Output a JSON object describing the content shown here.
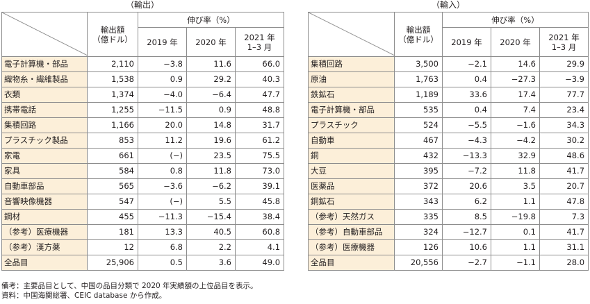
{
  "left": {
    "caption": "（輸出）",
    "header": {
      "col1": "輸出額\n（億ドル）",
      "group": "伸び率（%）",
      "y2019": "2019 年",
      "y2020": "2020 年",
      "y2021": "2021 年\n1–3 月"
    },
    "rows": [
      {
        "name": "電子計算機・部品",
        "amount": "2,110",
        "y2019": "−3.8",
        "y2020": "11.6",
        "y2021": "66.0"
      },
      {
        "name": "織物糸・繊維製品",
        "amount": "1,538",
        "y2019": "0.9",
        "y2020": "29.2",
        "y2021": "40.3"
      },
      {
        "name": "衣類",
        "amount": "1,374",
        "y2019": "−4.0",
        "y2020": "−6.4",
        "y2021": "47.7"
      },
      {
        "name": "携帯電話",
        "amount": "1,255",
        "y2019": "−11.5",
        "y2020": "0.9",
        "y2021": "48.8"
      },
      {
        "name": "集積回路",
        "amount": "1,166",
        "y2019": "20.0",
        "y2020": "14.8",
        "y2021": "31.7"
      },
      {
        "name": "プラスチック製品",
        "amount": "853",
        "y2019": "11.2",
        "y2020": "19.6",
        "y2021": "61.2"
      },
      {
        "name": "家電",
        "amount": "661",
        "y2019": "(−)",
        "y2020": "23.5",
        "y2021": "75.5"
      },
      {
        "name": "家具",
        "amount": "584",
        "y2019": "0.8",
        "y2020": "11.8",
        "y2021": "73.0"
      },
      {
        "name": "自動車部品",
        "amount": "565",
        "y2019": "−3.6",
        "y2020": "−6.2",
        "y2021": "39.1"
      },
      {
        "name": "音響映像機器",
        "amount": "547",
        "y2019": "(−)",
        "y2020": "5.5",
        "y2021": "45.8"
      },
      {
        "name": "鋼材",
        "amount": "455",
        "y2019": "−11.3",
        "y2020": "−15.4",
        "y2021": "38.4"
      },
      {
        "name": "（参考）医療機器",
        "amount": "181",
        "y2019": "13.3",
        "y2020": "40.5",
        "y2021": "60.8"
      },
      {
        "name": "（参考）漢方薬",
        "amount": "12",
        "y2019": "6.8",
        "y2020": "2.2",
        "y2021": "4.1"
      },
      {
        "name": "全品目",
        "amount": "25,906",
        "y2019": "0.5",
        "y2020": "3.6",
        "y2021": "49.0"
      }
    ]
  },
  "right": {
    "caption": "（輸入）",
    "header": {
      "col1": "輸出額\n（億ドル）",
      "group": "伸び率（%）",
      "y2019": "2019 年",
      "y2020": "2020 年",
      "y2021": "2021 年\n1–3 月"
    },
    "rows": [
      {
        "name": "集積回路",
        "amount": "3,500",
        "y2019": "−2.1",
        "y2020": "14.6",
        "y2021": "29.9"
      },
      {
        "name": "原油",
        "amount": "1,763",
        "y2019": "0.4",
        "y2020": "−27.3",
        "y2021": "−3.9"
      },
      {
        "name": "鉄鉱石",
        "amount": "1,189",
        "y2019": "33.6",
        "y2020": "17.4",
        "y2021": "77.7"
      },
      {
        "name": "電子計算機・部品",
        "amount": "535",
        "y2019": "0.4",
        "y2020": "7.4",
        "y2021": "23.4"
      },
      {
        "name": "プラスチック",
        "amount": "524",
        "y2019": "−5.5",
        "y2020": "−1.6",
        "y2021": "34.3"
      },
      {
        "name": "自動車",
        "amount": "467",
        "y2019": "−4.3",
        "y2020": "−4.2",
        "y2021": "30.2"
      },
      {
        "name": "銅",
        "amount": "432",
        "y2019": "−13.3",
        "y2020": "32.9",
        "y2021": "48.6"
      },
      {
        "name": "大豆",
        "amount": "395",
        "y2019": "−7.2",
        "y2020": "11.8",
        "y2021": "41.7"
      },
      {
        "name": "医薬品",
        "amount": "372",
        "y2019": "20.6",
        "y2020": "3.5",
        "y2021": "20.7"
      },
      {
        "name": "銅鉱石",
        "amount": "343",
        "y2019": "6.2",
        "y2020": "1.1",
        "y2021": "47.8"
      },
      {
        "name": "（参考）天然ガス",
        "amount": "335",
        "y2019": "8.5",
        "y2020": "−19.8",
        "y2021": "7.3"
      },
      {
        "name": "（参考）自動車部品",
        "amount": "324",
        "y2019": "−12.7",
        "y2020": "0.1",
        "y2021": "41.7"
      },
      {
        "name": "（参考）医療機器",
        "amount": "126",
        "y2019": "10.6",
        "y2020": "1.1",
        "y2021": "31.1"
      },
      {
        "name": "全品目",
        "amount": "20,556",
        "y2019": "−2.7",
        "y2020": "−1.1",
        "y2021": "28.0"
      }
    ]
  },
  "notes": {
    "line1": "備考：主要品目として、中国の品目分類で 2020 年実績額の上位品目を表示。",
    "line2": "資料：中国海関総署、CEIC database から作成。"
  },
  "colors": {
    "name_cell_bg": "#fcefd9",
    "border": "#8c8c8c",
    "text": "#231f20"
  }
}
